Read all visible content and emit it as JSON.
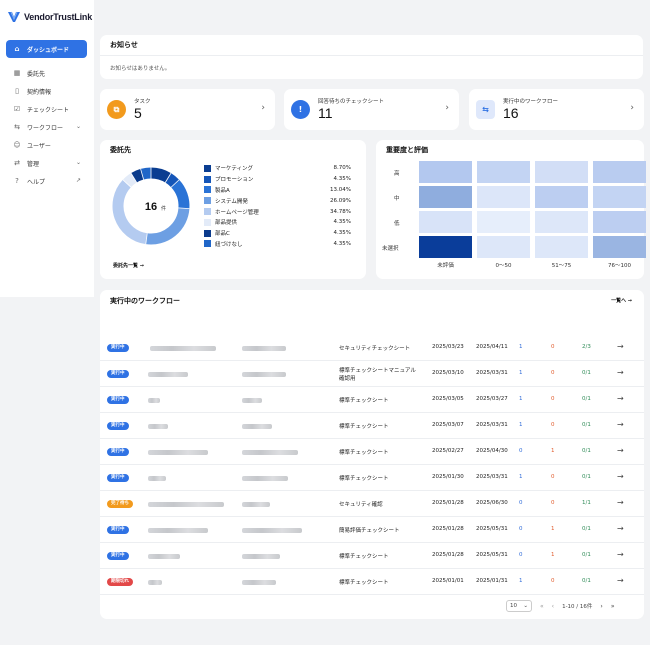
{
  "app": {
    "name": "VendorTrustLink"
  },
  "sidebar": {
    "items": [
      {
        "label": "ダッシュボード",
        "icon": "home-icon",
        "active": true
      },
      {
        "label": "委託先",
        "icon": "building-icon"
      },
      {
        "label": "契約情報",
        "icon": "clipboard-icon"
      },
      {
        "label": "チェックシート",
        "icon": "checkbox-icon"
      },
      {
        "label": "ワークフロー",
        "icon": "workflow-icon",
        "expandable": true
      },
      {
        "label": "ユーザー",
        "icon": "users-icon"
      },
      {
        "label": "管理",
        "icon": "arrows-icon",
        "expandable": true
      },
      {
        "label": "ヘルプ",
        "icon": "help-icon",
        "external": true
      }
    ]
  },
  "notice": {
    "title": "お知らせ",
    "message": "お知らせはありません。"
  },
  "stats": [
    {
      "label": "タスク",
      "value": "5",
      "color": "#f29a1d"
    },
    {
      "label": "回答待ちのチェックシート",
      "value": "11",
      "color": "#2f72e4"
    },
    {
      "label": "実行中のワークフロー",
      "value": "16",
      "color": "#dfe8fb"
    }
  ],
  "vendors": {
    "title": "委託先",
    "total": "16",
    "unit": "件",
    "more": "委託先一覧 →",
    "legend": [
      {
        "name": "マーケティング",
        "pct": "8.70%",
        "value": 8.7,
        "color": "#0a3d91"
      },
      {
        "name": "プロモーション",
        "pct": "4.35%",
        "value": 4.35,
        "color": "#1556b8"
      },
      {
        "name": "製品A",
        "pct": "13.04%",
        "value": 13.04,
        "color": "#2a73d6"
      },
      {
        "name": "システム開発",
        "pct": "26.09%",
        "value": 26.09,
        "color": "#6d9fe3"
      },
      {
        "name": "ホームページ管理",
        "pct": "34.78%",
        "value": 34.78,
        "color": "#b4cbf0"
      },
      {
        "name": "部品提供",
        "pct": "4.35%",
        "value": 4.35,
        "color": "#e3ebf8"
      },
      {
        "name": "部品C",
        "pct": "4.35%",
        "value": 4.35,
        "color": "#0b3b8c"
      },
      {
        "name": "紐づけなし",
        "pct": "4.35%",
        "value": 4.35,
        "color": "#2066c8"
      }
    ]
  },
  "heatmap": {
    "title": "重要度と評価",
    "rows": [
      "高",
      "中",
      "低",
      "未選択"
    ],
    "cols": [
      "未評価",
      "0〜50",
      "51〜75",
      "76〜100"
    ],
    "colors": [
      [
        "#b3c8ef",
        "#c3d4f3",
        "#d2def6",
        "#b9ccf0"
      ],
      [
        "#8fadde",
        "#dce6f9",
        "#bccef1",
        "#c3d4f3"
      ],
      [
        "#d8e3f8",
        "#e6eefb",
        "#dde7f9",
        "#bccef1"
      ],
      [
        "#0a3d9a",
        "#dde7f9",
        "#dde7f9",
        "#9ab5e2"
      ]
    ]
  },
  "workflow": {
    "title": "実行中のワークフロー",
    "more": "一覧へ →",
    "rows": [
      {
        "status": "実行中",
        "status_color": "#2f72e4",
        "sheet": "セキュリティチェックシート",
        "sheet2": "",
        "start": "2025/03/23",
        "end": "2025/04/11",
        "a": "1",
        "b": "0",
        "c": "2/3"
      },
      {
        "status": "実行中",
        "status_color": "#2f72e4",
        "sheet": "標準チェックシートマニュアル",
        "sheet2": "確認用",
        "start": "2025/03/10",
        "end": "2025/03/31",
        "a": "1",
        "b": "0",
        "c": "0/1"
      },
      {
        "status": "実行中",
        "status_color": "#2f72e4",
        "sheet": "標準チェックシート",
        "sheet2": "",
        "start": "2025/03/05",
        "end": "2025/03/27",
        "a": "1",
        "b": "0",
        "c": "0/1"
      },
      {
        "status": "実行中",
        "status_color": "#2f72e4",
        "sheet": "標準チェックシート",
        "sheet2": "",
        "start": "2025/03/07",
        "end": "2025/03/31",
        "a": "1",
        "b": "0",
        "c": "0/1"
      },
      {
        "status": "実行中",
        "status_color": "#2f72e4",
        "sheet": "標準チェックシート",
        "sheet2": "",
        "start": "2025/02/27",
        "end": "2025/04/30",
        "a": "0",
        "b": "1",
        "c": "0/1"
      },
      {
        "status": "実行中",
        "status_color": "#2f72e4",
        "sheet": "標準チェックシート",
        "sheet2": "",
        "start": "2025/01/30",
        "end": "2025/03/31",
        "a": "1",
        "b": "0",
        "c": "0/1"
      },
      {
        "status": "完了待ち",
        "status_color": "#f29a1d",
        "sheet": "セキュリティ確認",
        "sheet2": "",
        "start": "2025/01/28",
        "end": "2025/06/30",
        "a": "0",
        "b": "0",
        "c": "1/1"
      },
      {
        "status": "実行中",
        "status_color": "#2f72e4",
        "sheet": "簡易評価チェックシート",
        "sheet2": "",
        "start": "2025/01/28",
        "end": "2025/05/31",
        "a": "0",
        "b": "1",
        "c": "0/1"
      },
      {
        "status": "実行中",
        "status_color": "#2f72e4",
        "sheet": "標準チェックシート",
        "sheet2": "",
        "start": "2025/01/28",
        "end": "2025/05/31",
        "a": "0",
        "b": "1",
        "c": "0/1"
      },
      {
        "status": "期限切れ",
        "status_color": "#e24848",
        "sheet": "標準チェックシート",
        "sheet2": "",
        "start": "2025/01/01",
        "end": "2025/01/31",
        "a": "1",
        "b": "0",
        "c": "0/1"
      }
    ]
  },
  "pager": {
    "page_size": "10",
    "range": "1-10 / 16件"
  }
}
